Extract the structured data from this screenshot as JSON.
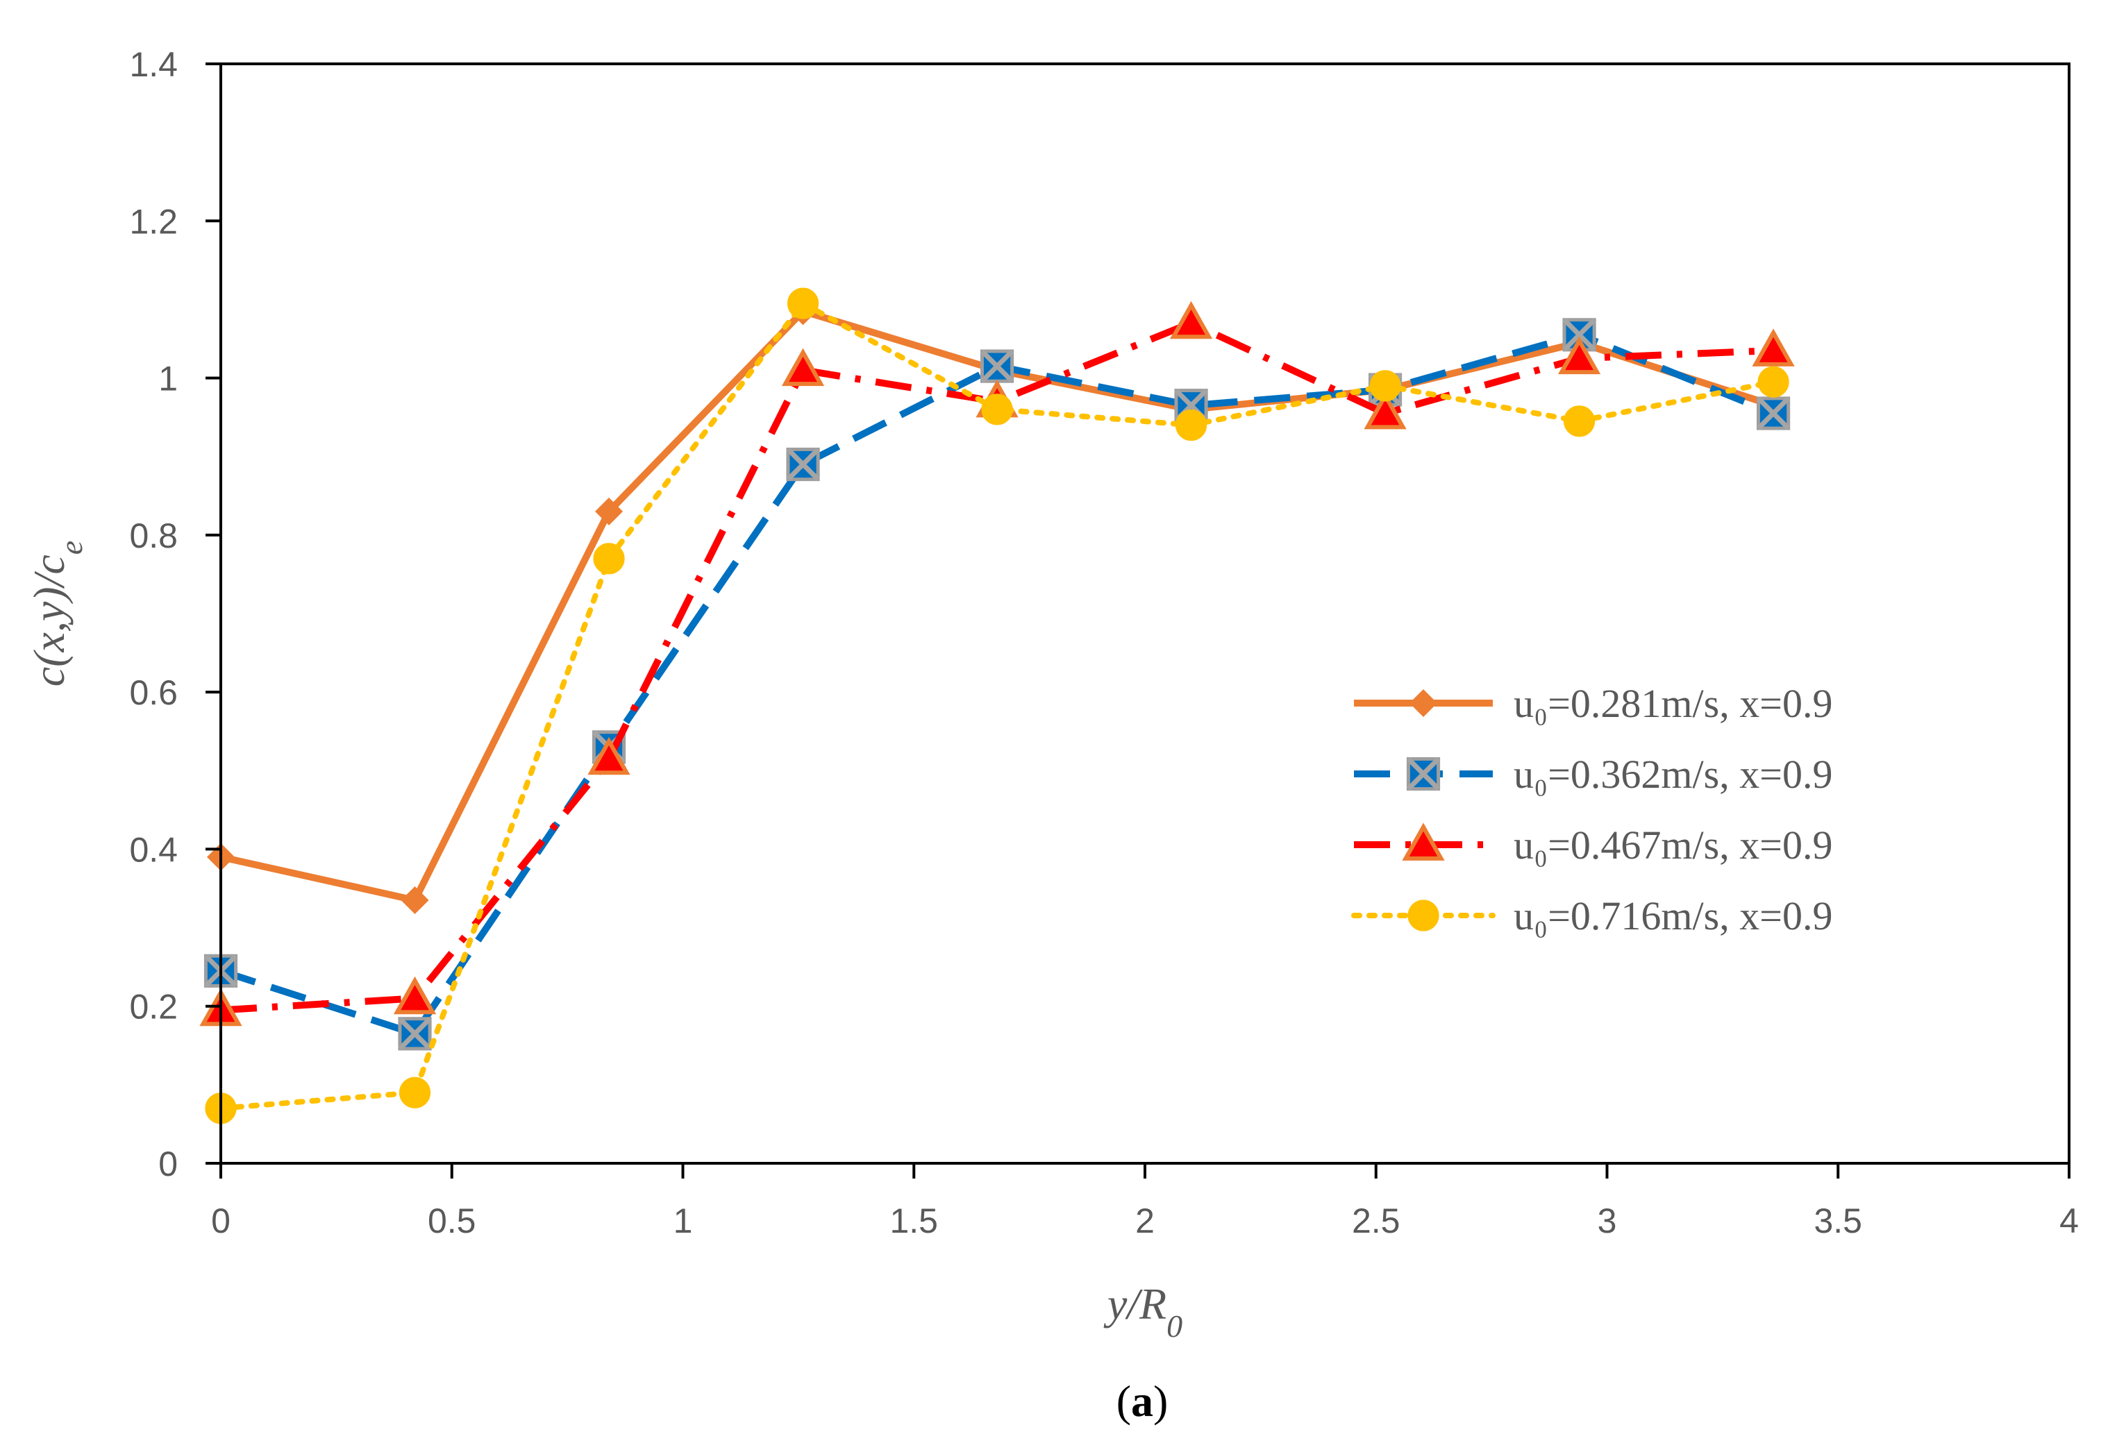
{
  "chart_data": {
    "type": "line",
    "title": "",
    "xlabel_main": "y/R",
    "xlabel_sub": "0",
    "ylabel_main": "c(x,y)/c",
    "ylabel_sub": "e",
    "xlim": [
      0,
      4
    ],
    "ylim": [
      0,
      1.4
    ],
    "xticks": [
      0,
      0.5,
      1,
      1.5,
      2,
      2.5,
      3,
      3.5,
      4
    ],
    "yticks": [
      0,
      0.2,
      0.4,
      0.6,
      0.8,
      1,
      1.2,
      1.4
    ],
    "xtick_labels": [
      "0",
      "0.5",
      "1",
      "1.5",
      "2",
      "2.5",
      "3",
      "3.5",
      "4"
    ],
    "ytick_labels": [
      "0",
      "0.2",
      "0.4",
      "0.6",
      "0.8",
      "1",
      "1.2",
      "1.4"
    ],
    "grid": false,
    "legend_position": "right",
    "x": [
      0,
      0.42,
      0.84,
      1.26,
      1.68,
      2.1,
      2.52,
      2.94,
      3.36
    ],
    "series": [
      {
        "name": "u₀=0.281m/s, x=0.9",
        "color": "#ED7D31",
        "marker": "diamond",
        "style": "solid",
        "values": [
          0.39,
          0.335,
          0.83,
          1.085,
          1.01,
          0.96,
          0.985,
          1.045,
          0.965
        ]
      },
      {
        "name": "u₀=0.362m/s, x=0.9",
        "color": "#0070C0",
        "marker": "square-x",
        "style": "dashed",
        "values": [
          0.245,
          0.165,
          0.53,
          0.89,
          1.015,
          0.965,
          0.985,
          1.055,
          0.955
        ]
      },
      {
        "name": "u₀=0.467m/s, x=0.9",
        "color": "#FF0000",
        "marker": "triangle",
        "style": "dash-dot",
        "values": [
          0.195,
          0.21,
          0.515,
          1.01,
          0.97,
          1.07,
          0.955,
          1.025,
          1.035
        ]
      },
      {
        "name": "u₀=0.716m/s, x=0.9",
        "color": "#FFC000",
        "marker": "circle",
        "style": "dotted",
        "values": [
          0.07,
          0.09,
          0.77,
          1.095,
          0.96,
          0.94,
          0.99,
          0.945,
          0.995
        ]
      }
    ]
  },
  "caption": {
    "open": "(",
    "letter": "a",
    "close": ")"
  }
}
